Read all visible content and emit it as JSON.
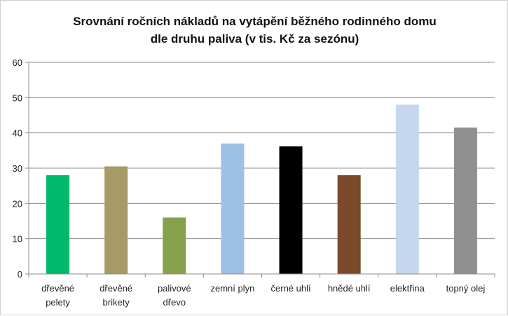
{
  "chart_data": {
    "type": "bar",
    "title_lines": [
      "Srovnání ročních nákladů na vytápění běžného rodinného domu",
      "dle druhu paliva (v tis. Kč za sezónu)"
    ],
    "xlabel": "",
    "ylabel": "",
    "ylim": [
      0,
      60
    ],
    "yticks": [
      "0",
      "10",
      "20",
      "30",
      "40",
      "50",
      "60"
    ],
    "grid": true,
    "legend": "none",
    "categories": [
      [
        "dřevěné",
        "pelety"
      ],
      [
        "dřevěné",
        "brikety"
      ],
      [
        "palivové",
        "dřevo"
      ],
      [
        "zemní plyn"
      ],
      [
        "černé uhlí"
      ],
      [
        "hnědé uhlí"
      ],
      [
        "elektřina"
      ],
      [
        "topný olej"
      ]
    ],
    "values": [
      28,
      30.5,
      16,
      37,
      36.2,
      28,
      48,
      41.5
    ],
    "colors": [
      "#00b96b",
      "#a89a64",
      "#86a14c",
      "#9ec0e6",
      "#000000",
      "#7b4a2a",
      "#c5d7ee",
      "#909090"
    ]
  }
}
